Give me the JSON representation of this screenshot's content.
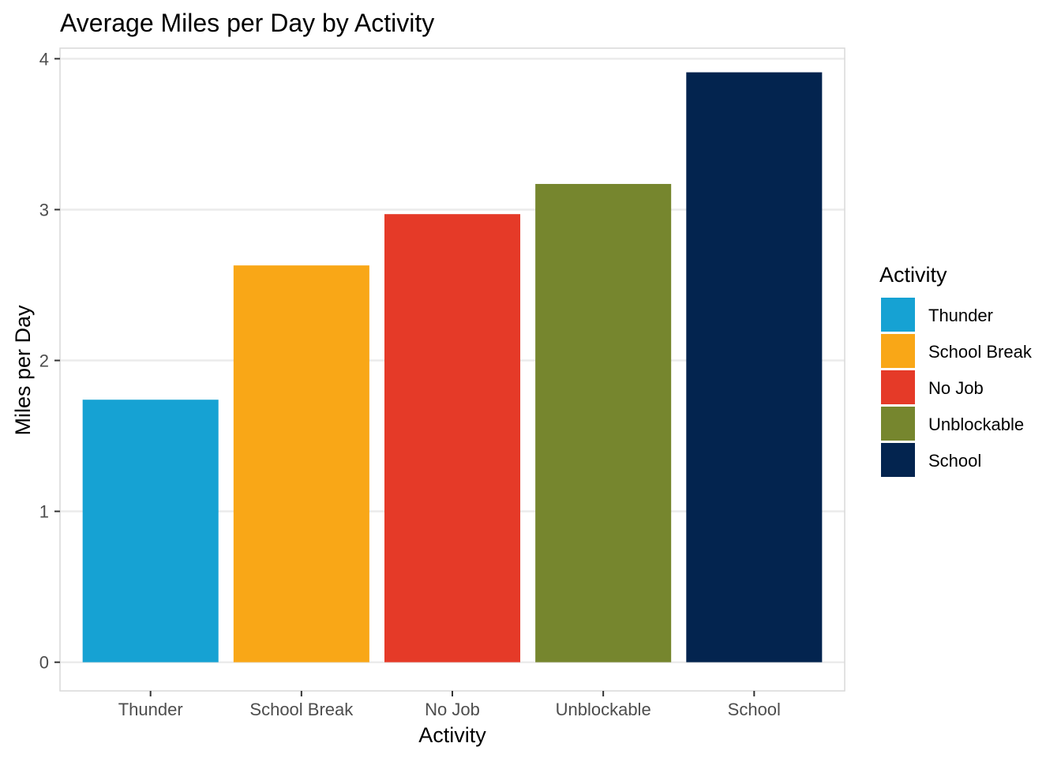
{
  "chart_data": {
    "type": "bar",
    "title": "Average Miles per Day by Activity",
    "xlabel": "Activity",
    "ylabel": "Miles per Day",
    "categories": [
      "Thunder",
      "School Break",
      "No Job",
      "Unblockable",
      "School"
    ],
    "values": [
      1.74,
      2.63,
      2.97,
      3.17,
      3.91
    ],
    "colors": [
      "#16A2D3",
      "#F9A717",
      "#E53A28",
      "#76862E",
      "#03244F"
    ],
    "ylim": [
      -0.19,
      4.07
    ],
    "yticks": [
      0,
      1,
      2,
      3,
      4
    ],
    "grid": true,
    "legend": {
      "title": "Activity",
      "position": "right",
      "entries": [
        "Thunder",
        "School Break",
        "No Job",
        "Unblockable",
        "School"
      ]
    }
  }
}
